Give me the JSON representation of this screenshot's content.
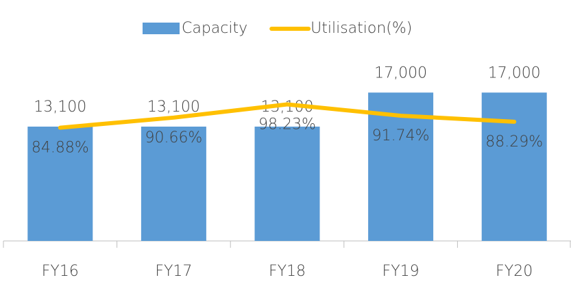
{
  "chart_data": {
    "type": "bar-line",
    "categories": [
      "FY16",
      "FY17",
      "FY18",
      "FY19",
      "FY20"
    ],
    "series": [
      {
        "name": "Capacity",
        "type": "bar",
        "color": "#5b9bd5",
        "values": [
          13100,
          13100,
          13100,
          17000,
          17000
        ],
        "value_labels": [
          "13,100",
          "13,100",
          "13,100",
          "17,000",
          "17,000"
        ]
      },
      {
        "name": "Utilisation(%)",
        "type": "line",
        "axis": "y2",
        "color": "#ffc000",
        "values": [
          84.88,
          90.66,
          98.23,
          91.74,
          88.29
        ],
        "value_labels": [
          "84.88%",
          "90.66%",
          "98.23%",
          "91.74%",
          "88.29%"
        ]
      }
    ],
    "ylim": [
      0,
      20000
    ],
    "y2lim": [
      20,
      120
    ],
    "legend": "top"
  }
}
